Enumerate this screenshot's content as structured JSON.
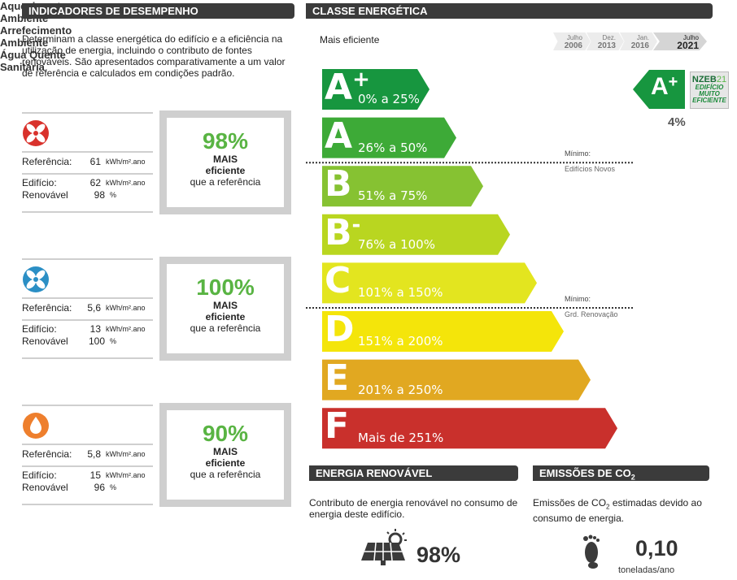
{
  "left": {
    "title": "INDICADORES DE DESEMPENHO",
    "intro": "Determinam a classe energética do edifício e a eficiência na utilização de energia, incluindo o contributo de fontes renováveis. São apresentados comparativamente a um valor de referência e calculados em condições padrão.",
    "indicators": [
      {
        "name": "Aquecimento Ambiente",
        "reference": {
          "label": "Referência:",
          "value": "61",
          "unit": "kWh/m².ano"
        },
        "building": {
          "label": "Edifício:",
          "value": "62",
          "unit": "kWh/m².ano"
        },
        "renewable": {
          "label": "Renovável",
          "value": "98",
          "unit": "%"
        },
        "comparison": {
          "percent": "98%",
          "line1": "MAIS",
          "line2": "eficiente",
          "line3": "que a referência"
        }
      },
      {
        "name": "Arrefecimento Ambiente",
        "reference": {
          "label": "Referência:",
          "value": "5,6",
          "unit": "kWh/m².ano"
        },
        "building": {
          "label": "Edifício:",
          "value": "13",
          "unit": "kWh/m².ano"
        },
        "renewable": {
          "label": "Renovável",
          "value": "100",
          "unit": "%"
        },
        "comparison": {
          "percent": "100%",
          "line1": "MAIS",
          "line2": "eficiente",
          "line3": "que a referência"
        }
      },
      {
        "name": "Água Quente Sanitária",
        "reference": {
          "label": "Referência:",
          "value": "5,8",
          "unit": "kWh/m².ano"
        },
        "building": {
          "label": "Edifício:",
          "value": "15",
          "unit": "kWh/m².ano"
        },
        "renewable": {
          "label": "Renovável",
          "value": "96",
          "unit": "%"
        },
        "comparison": {
          "percent": "90%",
          "line1": "MAIS",
          "line2": "eficiente",
          "line3": "que a referência"
        }
      }
    ]
  },
  "right": {
    "title": "CLASSE ENERGÉTICA",
    "top_label": "Mais eficiente",
    "tabs": [
      {
        "month": "Julho",
        "year": "2006"
      },
      {
        "month": "Dez.",
        "year": "2013"
      },
      {
        "month": "Jan.",
        "year": "2016"
      },
      {
        "month": "Julho",
        "year": "2021"
      }
    ],
    "classes": [
      {
        "letter": "A",
        "modifier": "+",
        "range": "0% a 25%",
        "color": "#17963f"
      },
      {
        "letter": "A",
        "modifier": null,
        "range": "26% a 50%",
        "color": "#3daa37"
      },
      {
        "letter": "B",
        "modifier": null,
        "range": "51% a 75%",
        "color": "#86c232"
      },
      {
        "letter": "B",
        "modifier": "-",
        "range": "76% a 100%",
        "color": "#b9d620"
      },
      {
        "letter": "C",
        "modifier": null,
        "range": "101% a 150%",
        "color": "#e3e51f"
      },
      {
        "letter": "D",
        "modifier": null,
        "range": "151% a 200%",
        "color": "#f4e50a"
      },
      {
        "letter": "E",
        "modifier": null,
        "range": "201% a 250%",
        "color": "#e1a821"
      },
      {
        "letter": "F",
        "modifier": null,
        "range": "Mais de 251%",
        "color": "#c9302c"
      }
    ],
    "thresholds": [
      {
        "label": "Mínimo:",
        "text": "Edifícios Novos"
      },
      {
        "label": "Mínimo:",
        "text": "Grd. Renovação"
      }
    ],
    "result": {
      "letter": "A",
      "modifier": "+",
      "percent": "4%",
      "nzeb": {
        "name": "NZEB",
        "year": "21",
        "lines": [
          "EDIFÍCIO",
          "MUITO",
          "EFICIENTE"
        ]
      }
    }
  },
  "renewable": {
    "title": "ENERGIA RENOVÁVEL",
    "text": "Contributo de energia renovável no consumo de energia deste edifício.",
    "value": "98%"
  },
  "emissions": {
    "title": [
      "EMISSÕES DE CO",
      "2"
    ],
    "text": [
      "Emissões de CO",
      "2",
      " estimadas devido ao consumo de energia."
    ],
    "value": "0,10",
    "unit": "toneladas/ano"
  }
}
